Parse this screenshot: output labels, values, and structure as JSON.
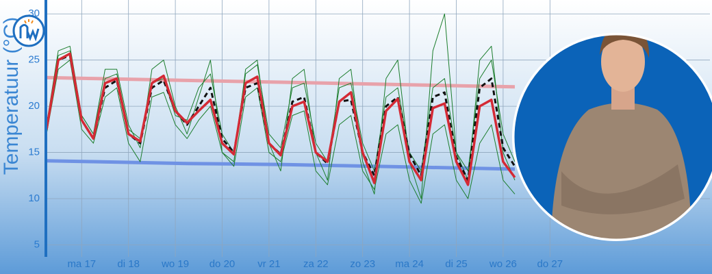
{
  "chart_data": {
    "type": "line",
    "y_label": "Temperatuur (°C)",
    "ylim": [
      3.7,
      31.5
    ],
    "yticks": [
      5,
      10,
      15,
      20,
      25,
      30
    ],
    "xlim": [
      0,
      340
    ],
    "xticks": [
      {
        "value": 18,
        "label": "ma 17"
      },
      {
        "value": 42,
        "label": "di 18"
      },
      {
        "value": 66,
        "label": "wo 19"
      },
      {
        "value": 90,
        "label": "do 20"
      },
      {
        "value": 114,
        "label": "vr 21"
      },
      {
        "value": 138,
        "label": "za 22"
      },
      {
        "value": 162,
        "label": "zo 23"
      },
      {
        "value": 186,
        "label": "ma 24"
      },
      {
        "value": 210,
        "label": "di 25"
      },
      {
        "value": 234,
        "label": "wo 26"
      },
      {
        "value": 258,
        "label": "do 27"
      }
    ],
    "grid": true,
    "x": [
      0,
      6,
      12,
      18,
      24,
      30,
      36,
      42,
      48,
      54,
      60,
      66,
      72,
      78,
      84,
      90,
      96,
      102,
      108,
      114,
      120,
      126,
      132,
      138,
      144,
      150,
      156,
      162,
      168,
      174,
      180,
      186,
      192,
      198,
      204,
      210,
      216,
      222,
      228,
      234,
      240
    ],
    "series": [
      {
        "color": "#e8a2aa",
        "width": 5,
        "x": [
          0,
          24,
          48,
          72,
          96,
          120,
          144,
          168,
          192,
          216,
          240
        ],
        "values": [
          23.1,
          23.0,
          22.9,
          22.8,
          22.7,
          22.6,
          22.5,
          22.4,
          22.3,
          22.2,
          22.1
        ]
      },
      {
        "color": "#6f92e4",
        "width": 5,
        "x": [
          0,
          24,
          48,
          72,
          96,
          120,
          144,
          168,
          192,
          216,
          240
        ],
        "values": [
          14.1,
          14.0,
          13.9,
          13.8,
          13.75,
          13.7,
          13.6,
          13.5,
          13.4,
          13.3,
          13.2
        ]
      },
      {
        "color": "#1b7d2c",
        "width": 1,
        "values": [
          18,
          26,
          26.5,
          19,
          17,
          24,
          24,
          18,
          15.5,
          24,
          25,
          20,
          17,
          21,
          25,
          15,
          14,
          24,
          25,
          16,
          13,
          23,
          24,
          15,
          12,
          23,
          24,
          14,
          10.5,
          23,
          25,
          14,
          10,
          26,
          30,
          15,
          12,
          25,
          26.5,
          15,
          12
        ]
      },
      {
        "color": "#1b7d2c",
        "width": 1,
        "values": [
          17,
          24,
          25,
          17.5,
          16,
          21,
          22,
          16,
          14,
          21,
          21.5,
          18,
          16.5,
          18.5,
          20,
          15,
          13.5,
          21,
          22,
          15,
          14,
          19,
          19.5,
          13,
          11.5,
          18,
          19,
          13,
          11,
          17,
          18,
          12,
          9.5,
          17,
          18,
          12,
          10,
          16,
          18,
          12,
          10.5
        ]
      },
      {
        "color": "#1b7d2c",
        "width": 1,
        "values": [
          18,
          25.5,
          26,
          19,
          17,
          23,
          23.5,
          17.5,
          16.5,
          22.5,
          23,
          19,
          18.5,
          22,
          23.5,
          17,
          15,
          23.5,
          24.5,
          17,
          15.5,
          22,
          22.5,
          16,
          14,
          22,
          22.5,
          16,
          13,
          21,
          22,
          15,
          13,
          22,
          23,
          15,
          13,
          23,
          25,
          17,
          14
        ]
      },
      {
        "color": "#111111",
        "width": 3,
        "dash": true,
        "values": [
          17.5,
          25,
          25.5,
          18.5,
          16.5,
          22,
          22.8,
          17,
          16,
          22,
          22.8,
          19.5,
          18,
          20,
          22,
          16.5,
          15,
          22,
          22.5,
          16,
          14.8,
          20.5,
          21,
          15,
          13.8,
          20.5,
          20.7,
          15,
          12.5,
          20,
          21,
          14.8,
          12.5,
          21,
          21.5,
          14.5,
          12,
          22,
          23,
          15.5,
          13.5
        ]
      },
      {
        "color": "#d42a35",
        "width": 3.5,
        "values": [
          17.5,
          25,
          25.7,
          18.5,
          16.5,
          22.5,
          23,
          17,
          16.2,
          22.5,
          23.3,
          19.5,
          18.2,
          19.5,
          20.7,
          16,
          14.8,
          22.5,
          23.2,
          16,
          14.7,
          20,
          20.5,
          15,
          14,
          20.5,
          21.5,
          15,
          11.7,
          19.5,
          20.8,
          14,
          12,
          19.8,
          20.3,
          14,
          11.5,
          20,
          20.7,
          14,
          12.3
        ]
      }
    ]
  }
}
